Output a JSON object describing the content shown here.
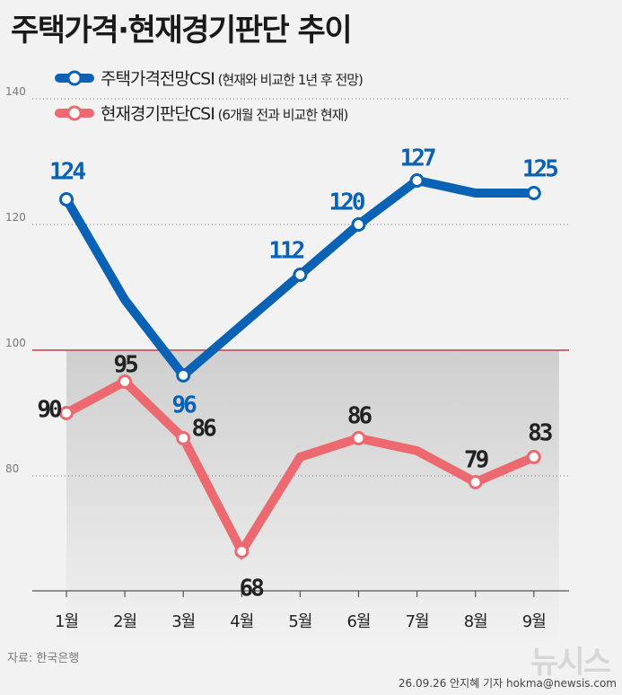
{
  "title": "주택가격·현재경기판단 추이",
  "source": "자료: 한국은행",
  "credit": "26.09.26 안지혜 기자 hokma@newsis.com",
  "logo": "뉴시스",
  "chart_data": {
    "type": "line",
    "categories": [
      "1월",
      "2월",
      "3월",
      "4월",
      "5월",
      "6월",
      "7월",
      "8월",
      "9월"
    ],
    "ylim": [
      60,
      140
    ],
    "yticks": [
      80,
      100,
      120,
      140
    ],
    "reference_line": 100,
    "grid": true,
    "legend_position": "top-left",
    "series": [
      {
        "name": "주택가격전망CSI",
        "note": "(현재와 비교한 1년 후 전망)",
        "color": "#0a62b4",
        "values": [
          124,
          108,
          96,
          104,
          112,
          120,
          127,
          125,
          125
        ],
        "labeled": [
          true,
          false,
          true,
          false,
          true,
          true,
          true,
          false,
          true
        ]
      },
      {
        "name": "현재경기판단CSI",
        "note": "(6개월 전과 비교한 현재)",
        "color": "#ec6a6f",
        "values": [
          90,
          95,
          86,
          68,
          83,
          86,
          84,
          79,
          83
        ],
        "labeled": [
          true,
          true,
          true,
          true,
          false,
          true,
          false,
          true,
          true
        ]
      }
    ]
  }
}
